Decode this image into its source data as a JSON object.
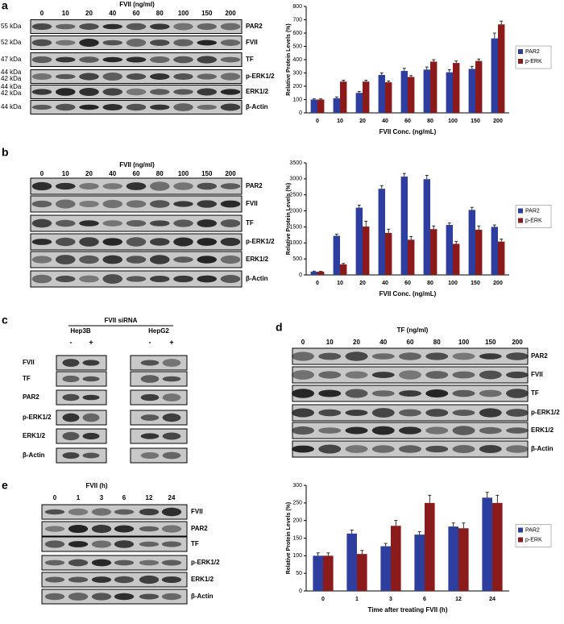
{
  "panel_labels": [
    "a",
    "b",
    "c",
    "d",
    "e"
  ],
  "blots": {
    "a": {
      "title": "FVII (ng/ml)",
      "lanes": [
        "0",
        "10",
        "20",
        "40",
        "60",
        "80",
        "100",
        "150",
        "200"
      ],
      "rows": [
        "PAR2",
        "FVII",
        "TF",
        "p-ERK1/2",
        "ERK1/2",
        "β-Actin"
      ],
      "kda": [
        "55 kDa",
        "52 kDa",
        "47 kDa",
        "44 kDa",
        "42 kDa",
        "44 kDa",
        "42 kDa",
        "44 kDa"
      ]
    },
    "b": {
      "title": "FVII (ng/ml)",
      "lanes": [
        "0",
        "10",
        "20",
        "40",
        "60",
        "80",
        "100",
        "150",
        "200"
      ],
      "rows": [
        "PAR2",
        "FVII",
        "TF",
        "p-ERK1/2",
        "ERK1/2",
        "β-Actin"
      ]
    },
    "c": {
      "title": "FVII siRNA",
      "cell_lines": [
        "Hep3B",
        "HepG2"
      ],
      "lanes": [
        "-",
        "+",
        "-",
        "+"
      ],
      "rows": [
        "FVII",
        "TF",
        "PAR2",
        "p-ERK1/2",
        "ERK1/2",
        "β-Actin"
      ]
    },
    "d": {
      "title": "TF (ng/ml)",
      "lanes": [
        "0",
        "10",
        "20",
        "40",
        "60",
        "80",
        "100",
        "150",
        "200"
      ],
      "rows": [
        "PAR2",
        "FVII",
        "TF",
        "p-ERK1/2",
        "ERK1/2",
        "β-Actin"
      ]
    },
    "e": {
      "title": "FVII (h)",
      "lanes": [
        "0",
        "1",
        "3",
        "6",
        "12",
        "24"
      ],
      "rows": [
        "FVII",
        "PAR2",
        "TF",
        "p-ERK1/2",
        "ERK1/2",
        "β-Actin"
      ]
    }
  },
  "chart_data": [
    {
      "type": "bar",
      "x_label": "FVII Conc. (ng/mL)",
      "y_label": "Relative Protein Levels (%)",
      "categories": [
        "0",
        "10",
        "20",
        "40",
        "60",
        "80",
        "100",
        "150",
        "200"
      ],
      "series": [
        {
          "name": "PAR2",
          "color": "#2e3e9e",
          "values": [
            100,
            110,
            150,
            285,
            315,
            325,
            305,
            330,
            560
          ],
          "errors": [
            5,
            10,
            10,
            15,
            20,
            20,
            20,
            20,
            40
          ]
        },
        {
          "name": "p-ERK",
          "color": "#8b1a1a",
          "values": [
            100,
            235,
            235,
            230,
            270,
            385,
            375,
            390,
            665
          ],
          "errors": [
            5,
            10,
            10,
            10,
            10,
            15,
            15,
            15,
            25
          ]
        }
      ],
      "ylim": [
        0,
        800
      ],
      "yticks": [
        0,
        100,
        200,
        300,
        400,
        500,
        600,
        700,
        800
      ],
      "legend": "right"
    },
    {
      "type": "bar",
      "x_label": "FVII Conc. (ng/mL)",
      "y_label": "Relative Protein Levels (%)",
      "categories": [
        "0",
        "10",
        "20",
        "40",
        "60",
        "80",
        "100",
        "150",
        "200"
      ],
      "series": [
        {
          "name": "PAR2",
          "color": "#2e3e9e",
          "values": [
            100,
            1220,
            2100,
            2690,
            3070,
            2990,
            1560,
            2030,
            1500
          ],
          "errors": [
            20,
            50,
            80,
            100,
            100,
            120,
            60,
            80,
            60
          ]
        },
        {
          "name": "p-ERK",
          "color": "#8b1a1a",
          "values": [
            100,
            330,
            1510,
            1310,
            1100,
            1430,
            970,
            1410,
            1040
          ],
          "errors": [
            10,
            30,
            170,
            120,
            100,
            100,
            80,
            120,
            80
          ]
        }
      ],
      "ylim": [
        0,
        3500
      ],
      "yticks": [
        0,
        500,
        1000,
        1500,
        2000,
        2500,
        3000,
        3500
      ],
      "legend": "right"
    },
    {
      "type": "bar",
      "x_label": "Time after treating FVII (h)",
      "y_label": "Relative Protein Levels (%)",
      "categories": [
        "0",
        "1",
        "3",
        "6",
        "12",
        "24"
      ],
      "series": [
        {
          "name": "PAR2",
          "color": "#2e3e9e",
          "values": [
            100,
            163,
            127,
            160,
            183,
            265
          ],
          "errors": [
            8,
            10,
            8,
            8,
            10,
            15
          ]
        },
        {
          "name": "p-ERK",
          "color": "#8b1a1a",
          "values": [
            100,
            105,
            185,
            250,
            178,
            250
          ],
          "errors": [
            8,
            10,
            15,
            22,
            15,
            22
          ]
        }
      ],
      "ylim": [
        0,
        300
      ],
      "yticks": [
        0,
        50,
        100,
        150,
        200,
        250,
        300
      ],
      "legend": "right"
    }
  ]
}
